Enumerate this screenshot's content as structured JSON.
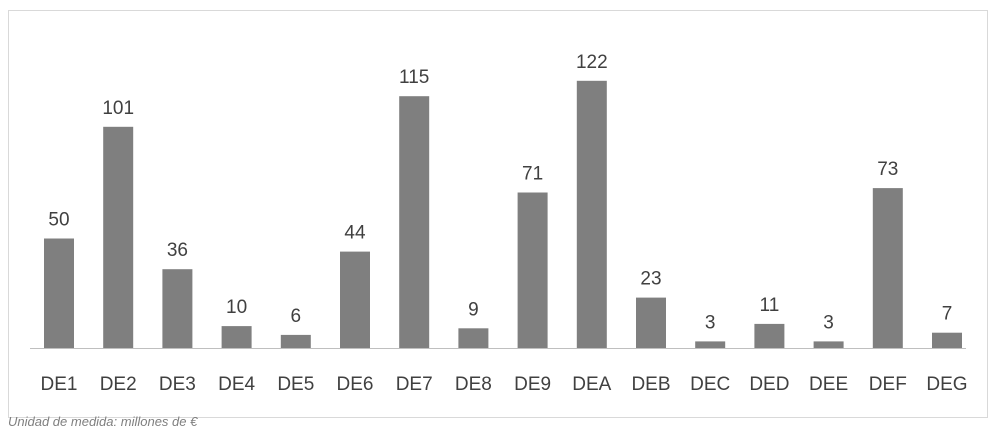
{
  "chart_data": {
    "type": "bar",
    "categories": [
      "DE1",
      "DE2",
      "DE3",
      "DE4",
      "DE5",
      "DE6",
      "DE7",
      "DE8",
      "DE9",
      "DEA",
      "DEB",
      "DEC",
      "DED",
      "DEE",
      "DEF",
      "DEG"
    ],
    "values": [
      50,
      101,
      36,
      10,
      6,
      44,
      115,
      9,
      71,
      122,
      23,
      3,
      11,
      3,
      73,
      7
    ],
    "data_labels": [
      "50",
      "101",
      "36",
      "10",
      "6",
      "44",
      "115",
      "9",
      "71",
      "122",
      "23",
      "3",
      "11",
      "3",
      "73",
      "7"
    ],
    "title": "",
    "xlabel": "",
    "ylabel": "",
    "ylim": [
      0,
      137
    ],
    "grid": false,
    "bar_color": "#7f7f7f"
  },
  "footnote": "Unidad de medida: millones de €"
}
